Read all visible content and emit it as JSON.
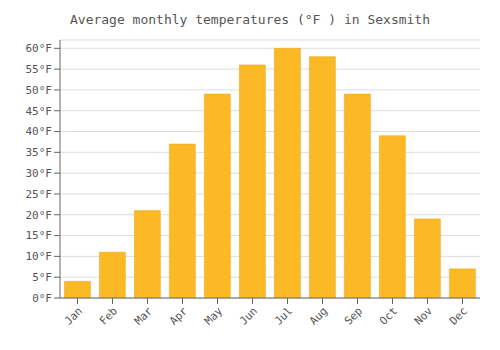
{
  "chart_data": {
    "type": "bar",
    "title": "Average monthly temperatures (°F ) in Sexsmith",
    "categories": [
      "Jan",
      "Feb",
      "Mar",
      "Apr",
      "May",
      "Jun",
      "Jul",
      "Aug",
      "Sep",
      "Oct",
      "Nov",
      "Dec"
    ],
    "values": [
      4,
      11,
      21,
      37,
      49,
      56,
      60,
      58,
      49,
      39,
      19,
      7
    ],
    "color": "#FBBA25",
    "ylim": [
      0,
      62
    ],
    "yticks": [
      {
        "value": 0,
        "label": "0°F"
      },
      {
        "value": 5,
        "label": "5°F"
      },
      {
        "value": 10,
        "label": "10°F"
      },
      {
        "value": 15,
        "label": "15°F"
      },
      {
        "value": 20,
        "label": "20°F"
      },
      {
        "value": 25,
        "label": "25°F"
      },
      {
        "value": 30,
        "label": "30°F"
      },
      {
        "value": 35,
        "label": "35°F"
      },
      {
        "value": 40,
        "label": "40°F"
      },
      {
        "value": 45,
        "label": "45°F"
      },
      {
        "value": 50,
        "label": "50°F"
      },
      {
        "value": 55,
        "label": "55°F"
      },
      {
        "value": 60,
        "label": "60°F"
      }
    ],
    "grid": true
  }
}
